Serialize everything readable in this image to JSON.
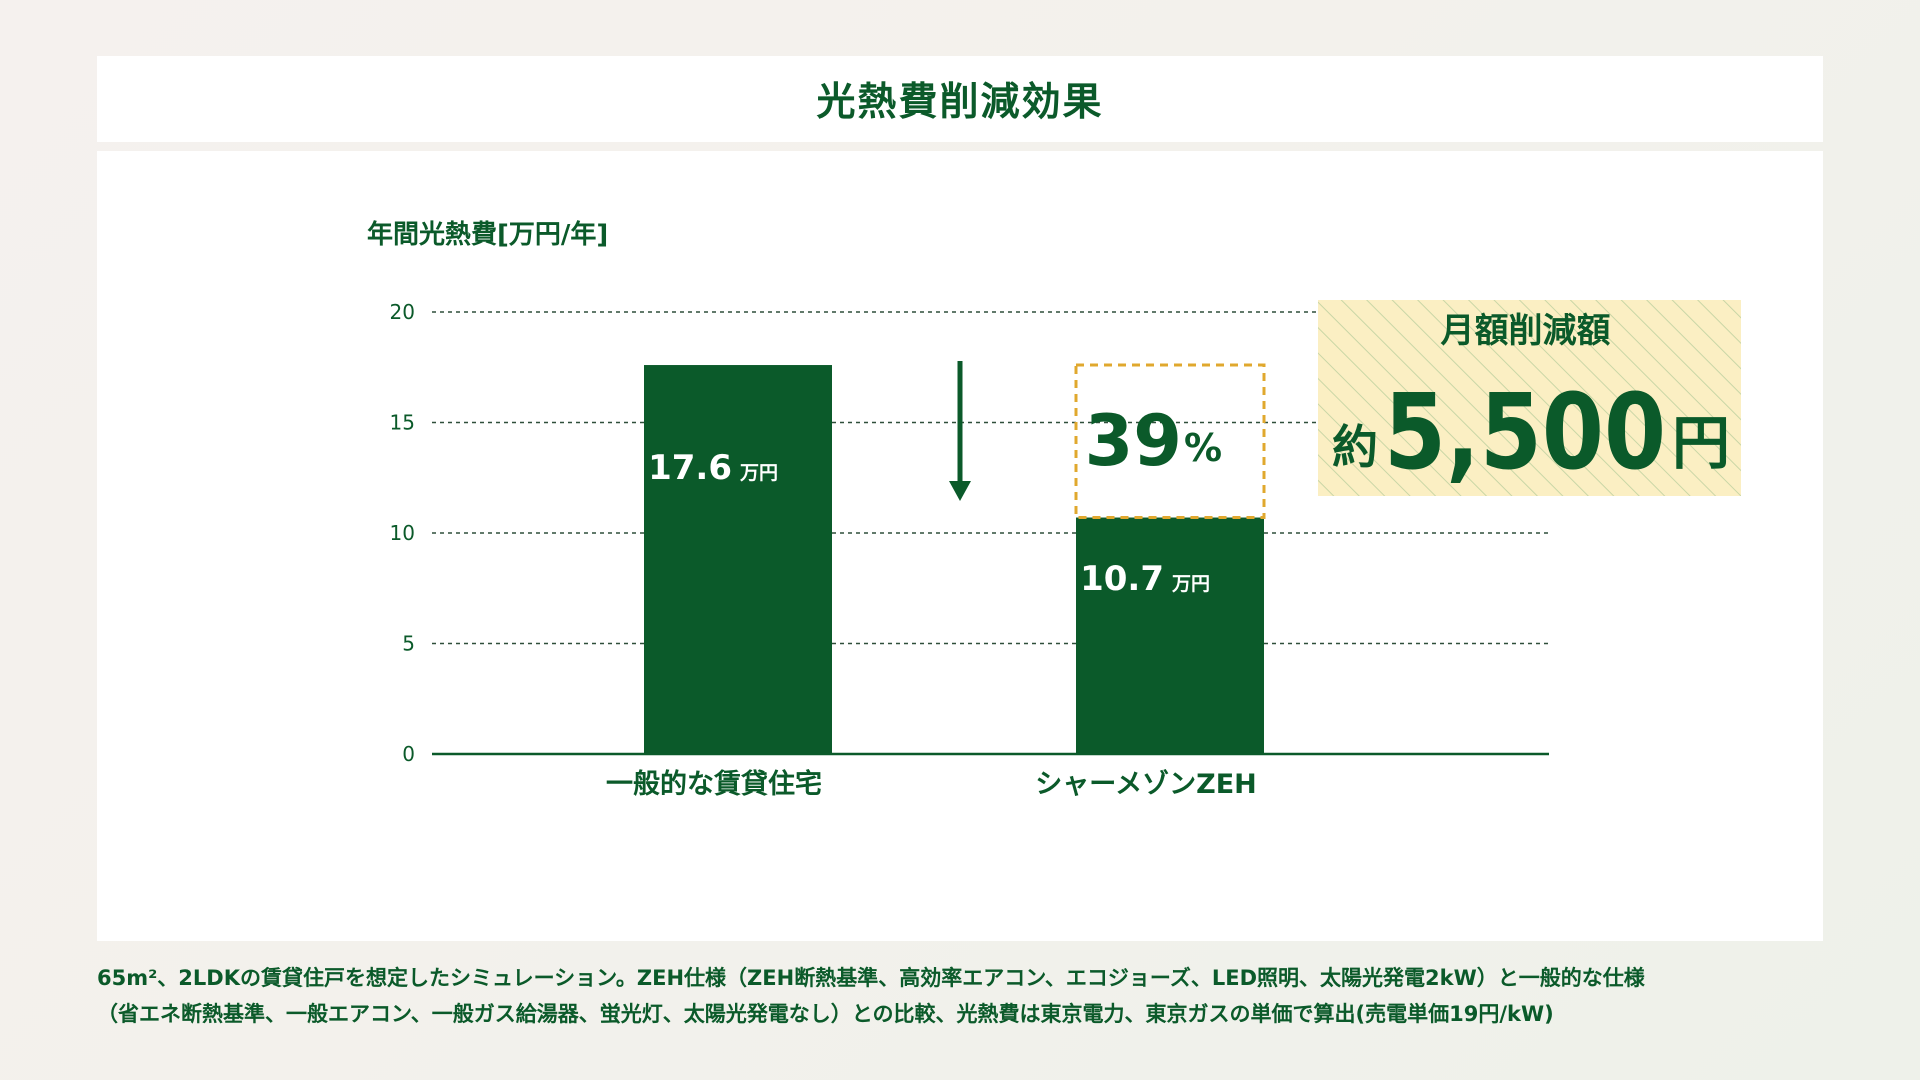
{
  "page": {
    "title": "光熱費削減効果",
    "footnote_lines": [
      "65m²、2LDKの賃貸住戸を想定したシミュレーション。ZEH仕様（ZEH断熱基準、高効率エアコン、エコジョーズ、LED照明、太陽光発電2kW）と一般的な仕様",
      "（省エネ断熱基準、一般エアコン、一般ガス給湯器、蛍光灯、太陽光発電なし）との比較、光熱費は東京電力、東京ガスの単価で算出(売電単価19円/kW)"
    ]
  },
  "colors": {
    "primary": "#0b5a2a",
    "accent_gold": "#e0a82e",
    "callout_bg": "#fbefc3",
    "callout_stripe": "#c9d6a6"
  },
  "chart_data": {
    "type": "bar",
    "title": "",
    "ylabel": "年間光熱費[万円/年]",
    "xlabel": "",
    "ylim": [
      0,
      20
    ],
    "yticks": [
      "0",
      "5",
      "10",
      "15",
      "20"
    ],
    "grid": true,
    "categories": [
      "一般的な賃貸住宅",
      "シャーメゾンZEH"
    ],
    "values": [
      17.6,
      10.7
    ],
    "value_labels": [
      "17.6",
      "10.7"
    ],
    "value_unit": "万円",
    "reduction": {
      "percent_label": "39",
      "percent_sign": "%"
    },
    "callout": {
      "title": "月額削減額",
      "prefix": "約",
      "amount": "5,500",
      "unit": "円"
    }
  }
}
